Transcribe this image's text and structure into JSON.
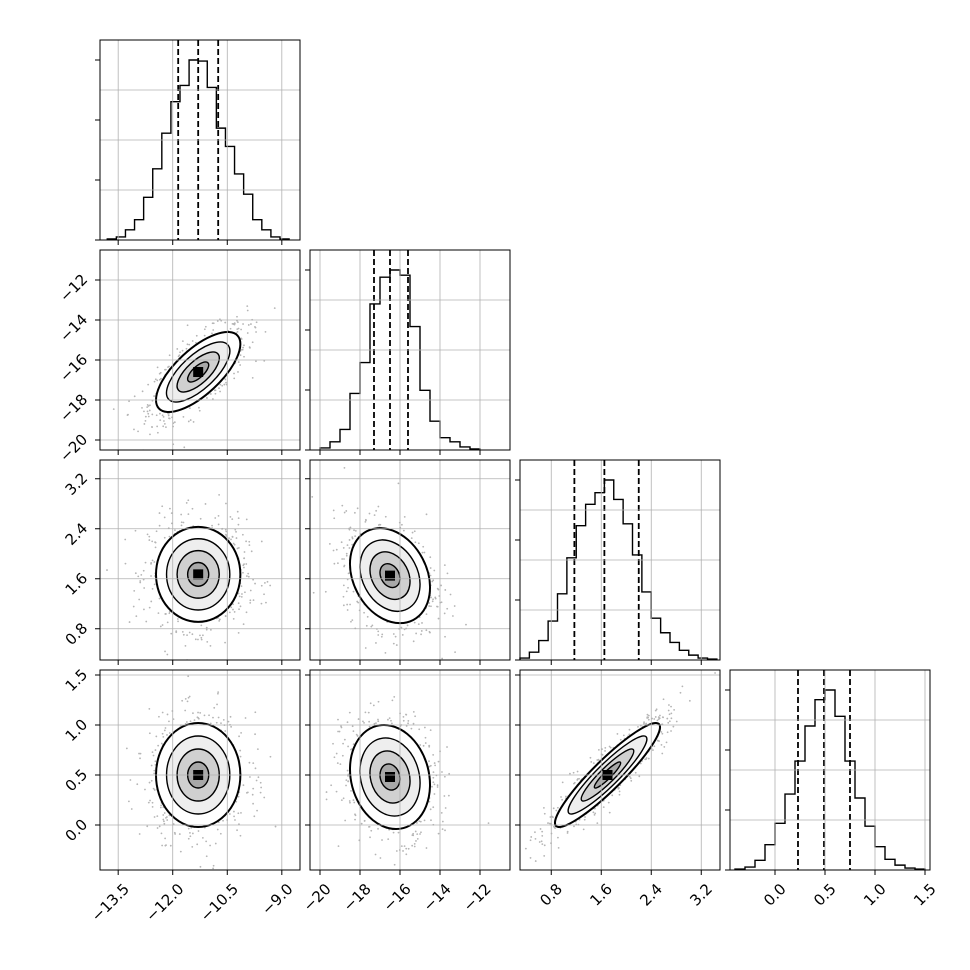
{
  "chart_data": {
    "type": "corner",
    "parameters": 4,
    "style": {
      "grid": true,
      "background": "#ffffff",
      "scatter_color": "#bdbdbd",
      "line_color": "#000000"
    },
    "axes": [
      {
        "range": [
          -14.0,
          -8.5
        ],
        "ticks": [
          -13.5,
          -12.0,
          -10.5,
          -9.0
        ],
        "tick_labels": [
          "−13.5",
          "−12.0",
          "−10.5",
          "−9.0"
        ]
      },
      {
        "range": [
          -20.5,
          -10.5
        ],
        "ticks": [
          -20,
          -18,
          -16,
          -14,
          -12
        ],
        "tick_labels": [
          "−20",
          "−18",
          "−16",
          "−14",
          "−12"
        ]
      },
      {
        "range": [
          0.3,
          3.5
        ],
        "ticks": [
          0.8,
          1.6,
          2.4,
          3.2
        ],
        "tick_labels": [
          "0.8",
          "1.6",
          "2.4",
          "3.2"
        ]
      },
      {
        "range": [
          -0.45,
          1.55
        ],
        "ticks": [
          0.0,
          0.5,
          1.0,
          1.5
        ],
        "tick_labels": [
          "0.0",
          "0.5",
          "1.0",
          "1.5"
        ]
      }
    ],
    "marginals": [
      {
        "bin_edges": [
          -13.8,
          -13.55,
          -13.3,
          -13.05,
          -12.8,
          -12.55,
          -12.3,
          -12.05,
          -11.8,
          -11.55,
          -11.3,
          -11.05,
          -10.8,
          -10.55,
          -10.3,
          -10.05,
          -9.8,
          -9.55,
          -9.3,
          -9.05,
          -8.8
        ],
        "counts": [
          1,
          3,
          10,
          20,
          42,
          70,
          105,
          136,
          152,
          177,
          176,
          150,
          110,
          92,
          65,
          45,
          20,
          10,
          3,
          1
        ],
        "quantiles": [
          -11.85,
          -11.3,
          -10.75
        ]
      },
      {
        "bin_edges": [
          -20.0,
          -19.5,
          -19.0,
          -18.5,
          -18.0,
          -17.5,
          -17.0,
          -16.5,
          -16.0,
          -15.5,
          -15.0,
          -14.5,
          -14.0,
          -13.5,
          -13.0,
          -12.5,
          -12.0
        ],
        "counts": [
          2,
          8,
          20,
          55,
          85,
          142,
          168,
          175,
          170,
          120,
          58,
          28,
          12,
          8,
          3,
          1
        ],
        "quantiles": [
          -17.3,
          -16.5,
          -15.6
        ]
      },
      {
        "bin_edges": [
          0.3,
          0.45,
          0.6,
          0.75,
          0.9,
          1.05,
          1.2,
          1.35,
          1.5,
          1.65,
          1.8,
          1.95,
          2.1,
          2.25,
          2.4,
          2.55,
          2.7,
          2.85,
          3.0,
          3.15,
          3.3,
          3.45
        ],
        "counts": [
          2,
          8,
          20,
          40,
          68,
          105,
          138,
          160,
          172,
          185,
          165,
          140,
          108,
          70,
          43,
          28,
          18,
          10,
          5,
          2,
          1
        ],
        "quantiles": [
          1.17,
          1.65,
          2.2
        ]
      },
      {
        "bin_edges": [
          -0.4,
          -0.3,
          -0.2,
          -0.1,
          0.0,
          0.1,
          0.2,
          0.3,
          0.4,
          0.5,
          0.6,
          0.7,
          0.8,
          0.9,
          1.0,
          1.1,
          1.2,
          1.3,
          1.4,
          1.5
        ],
        "counts": [
          1,
          3,
          10,
          26,
          48,
          78,
          112,
          148,
          175,
          185,
          158,
          112,
          74,
          45,
          24,
          11,
          5,
          2,
          1
        ],
        "quantiles": [
          0.23,
          0.49,
          0.75
        ]
      }
    ],
    "pairs": [
      {
        "x": 0,
        "y": 1,
        "mean": [
          -11.3,
          -16.6
        ],
        "sd": [
          0.58,
          1.0
        ],
        "corr": 0.7,
        "scatter_count": 800
      },
      {
        "x": 0,
        "y": 2,
        "mean": [
          -11.3,
          1.67
        ],
        "sd": [
          0.58,
          0.38
        ],
        "corr": 0.0,
        "scatter_count": 800
      },
      {
        "x": 1,
        "y": 2,
        "mean": [
          -16.5,
          1.65
        ],
        "sd": [
          1.0,
          0.38
        ],
        "corr": -0.25,
        "scatter_count": 800
      },
      {
        "x": 0,
        "y": 3,
        "mean": [
          -11.3,
          0.5
        ],
        "sd": [
          0.58,
          0.26
        ],
        "corr": 0.0,
        "scatter_count": 800
      },
      {
        "x": 1,
        "y": 3,
        "mean": [
          -16.5,
          0.48
        ],
        "sd": [
          1.0,
          0.26
        ],
        "corr": -0.15,
        "scatter_count": 800
      },
      {
        "x": 2,
        "y": 3,
        "mean": [
          1.7,
          0.5
        ],
        "sd": [
          0.42,
          0.26
        ],
        "corr": 0.92,
        "scatter_count": 800
      }
    ],
    "contour_levels_sigma": [
      0.5,
      1.0,
      1.5,
      2.0
    ]
  }
}
